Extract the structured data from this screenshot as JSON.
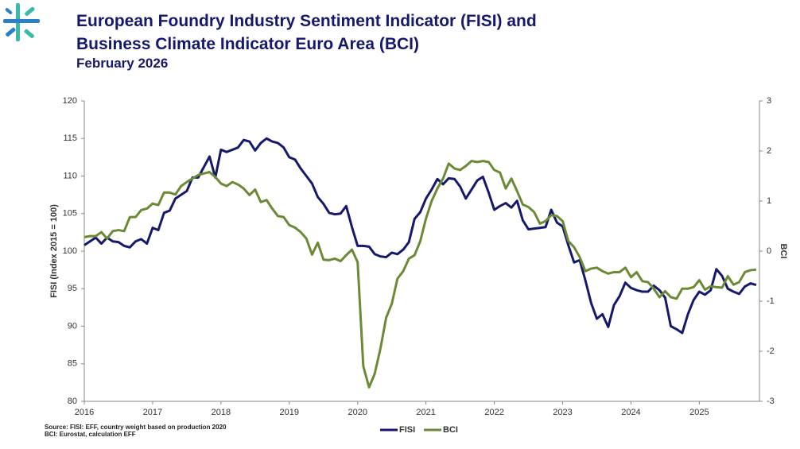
{
  "chart_data": {
    "type": "line",
    "title": "European Foundry Industry Sentiment Indicator (FISI) and",
    "title_line2": "Business Climate Indicator Euro Area (BCI)",
    "subtitle": "February 2026",
    "y_label": "FISI (Index 2015 = 100)",
    "y2_label": "BCI",
    "notes": [
      "Source: FISI: EFF, country weight based on production 2020",
      "BCI: Eurostat, calculation EFF"
    ],
    "x": [
      2016,
      2016.083,
      2016.167,
      2016.25,
      2016.333,
      2016.417,
      2016.5,
      2016.583,
      2016.667,
      2016.75,
      2016.833,
      2016.917,
      2017,
      2017.083,
      2017.167,
      2017.25,
      2017.333,
      2017.417,
      2017.5,
      2017.583,
      2017.667,
      2017.75,
      2017.833,
      2017.917,
      2018,
      2018.083,
      2018.167,
      2018.25,
      2018.333,
      2018.417,
      2018.5,
      2018.583,
      2018.667,
      2018.75,
      2018.833,
      2018.917,
      2019,
      2019.083,
      2019.167,
      2019.25,
      2019.333,
      2019.417,
      2019.5,
      2019.583,
      2019.667,
      2019.75,
      2019.833,
      2019.917,
      2020,
      2020.083,
      2020.167,
      2020.25,
      2020.333,
      2020.417,
      2020.5,
      2020.583,
      2020.667,
      2020.75,
      2020.833,
      2020.917,
      2021,
      2021.083,
      2021.167,
      2021.25,
      2021.333,
      2021.417,
      2021.5,
      2021.583,
      2021.667,
      2021.75,
      2021.833,
      2021.917,
      2022,
      2022.083,
      2022.167,
      2022.25,
      2022.333,
      2022.417,
      2022.5,
      2022.583,
      2022.667,
      2022.75,
      2022.833,
      2022.917,
      2023,
      2023.083,
      2023.167,
      2023.25,
      2023.333,
      2023.417,
      2023.5,
      2023.583,
      2023.667,
      2023.75,
      2023.833,
      2023.917,
      2024,
      2024.083,
      2024.167,
      2024.25,
      2024.333,
      2024.417,
      2024.5,
      2024.583,
      2024.667,
      2024.75,
      2024.833,
      2024.917,
      2025,
      2025.083,
      2025.167,
      2025.25,
      2025.333,
      2025.417,
      2025.5,
      2025.583,
      2025.667,
      2025.75,
      2025.833
    ],
    "xlim": [
      2016,
      2025.88
    ],
    "xticks": [
      2016,
      2017,
      2018,
      2019,
      2020,
      2021,
      2022,
      2023,
      2024,
      2025
    ],
    "ylim": [
      80,
      120
    ],
    "yticks": [
      80,
      85,
      90,
      95,
      100,
      105,
      110,
      115,
      120
    ],
    "y2lim": [
      -3,
      3
    ],
    "y2ticks": [
      -3,
      -2,
      -1,
      0,
      1,
      2,
      3
    ],
    "grid": false,
    "series": [
      {
        "name": "FISI",
        "color": "#14196b",
        "values": [
          100.8,
          101.3,
          101.8,
          101.0,
          101.8,
          101.3,
          101.2,
          100.7,
          100.5,
          101.3,
          101.6,
          101.0,
          103.1,
          102.8,
          105.1,
          105.4,
          107.0,
          107.5,
          108.0,
          109.8,
          109.8,
          111.2,
          112.6,
          109.8,
          113.5,
          113.2,
          113.5,
          113.8,
          114.8,
          114.6,
          113.4,
          114.4,
          115.0,
          114.6,
          114.4,
          113.8,
          112.5,
          112.2,
          111.0,
          110.0,
          109.0,
          107.2,
          106.3,
          105.1,
          104.9,
          105.0,
          106.0,
          103.2,
          100.7,
          100.7,
          100.6,
          99.6,
          99.3,
          99.2,
          99.8,
          99.6,
          100.2,
          101.2,
          104.3,
          105.2,
          107.0,
          108.2,
          109.6,
          108.9,
          109.7,
          109.6,
          108.6,
          107.0,
          108.2,
          109.4,
          109.9,
          107.8,
          105.5,
          106.0,
          106.4,
          105.8,
          106.7,
          104.1,
          102.9,
          103.0,
          103.1,
          103.2,
          105.5,
          103.8,
          103.3,
          100.8,
          98.5,
          98.8,
          96.1,
          93.1,
          91.0,
          91.6,
          89.9,
          92.8,
          94.0,
          95.8,
          95.1,
          94.8,
          94.6,
          94.6,
          95.4,
          94.8,
          93.8,
          90.0,
          89.6,
          89.1,
          91.6,
          93.5,
          94.6,
          94.2,
          94.8,
          97.6,
          96.7,
          95.0,
          94.6,
          94.3,
          95.3,
          95.7,
          95.5
        ]
      },
      {
        "name": "BCI",
        "color": "#6b8a35",
        "axis": "y2",
        "values": [
          0.28,
          0.3,
          0.3,
          0.38,
          0.25,
          0.4,
          0.42,
          0.4,
          0.68,
          0.68,
          0.82,
          0.85,
          0.95,
          0.92,
          1.17,
          1.17,
          1.13,
          1.3,
          1.38,
          1.45,
          1.52,
          1.55,
          1.58,
          1.48,
          1.35,
          1.3,
          1.38,
          1.33,
          1.25,
          1.12,
          1.23,
          0.98,
          1.02,
          0.85,
          0.7,
          0.68,
          0.52,
          0.47,
          0.38,
          0.25,
          -0.07,
          0.17,
          -0.17,
          -0.18,
          -0.15,
          -0.2,
          -0.08,
          0.03,
          -0.22,
          -2.3,
          -2.72,
          -2.45,
          -1.95,
          -1.33,
          -1.05,
          -0.55,
          -0.4,
          -0.15,
          -0.08,
          0.2,
          0.65,
          1.0,
          1.25,
          1.45,
          1.75,
          1.65,
          1.62,
          1.7,
          1.8,
          1.78,
          1.8,
          1.78,
          1.62,
          1.57,
          1.25,
          1.45,
          1.2,
          0.93,
          0.88,
          0.78,
          0.55,
          0.6,
          0.72,
          0.7,
          0.6,
          0.2,
          0.08,
          -0.12,
          -0.4,
          -0.35,
          -0.33,
          -0.4,
          -0.45,
          -0.42,
          -0.42,
          -0.33,
          -0.52,
          -0.42,
          -0.6,
          -0.62,
          -0.75,
          -0.92,
          -0.8,
          -0.92,
          -0.95,
          -0.75,
          -0.75,
          -0.72,
          -0.58,
          -0.77,
          -0.7,
          -0.72,
          -0.73,
          -0.5,
          -0.67,
          -0.62,
          -0.42,
          -0.38,
          -0.37
        ]
      }
    ]
  }
}
